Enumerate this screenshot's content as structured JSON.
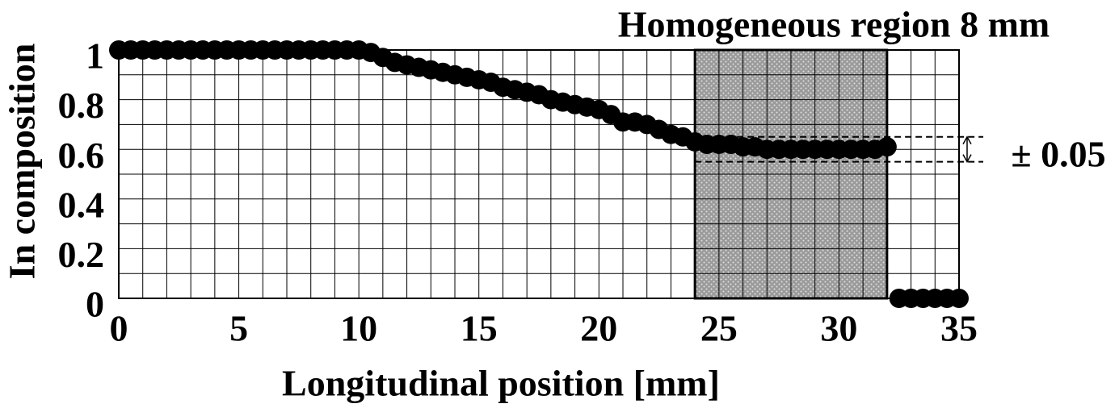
{
  "chart_data": {
    "type": "scatter",
    "x_label": "Longitudinal position [mm]",
    "y_label": "In composition",
    "x": [
      0,
      0.5,
      1,
      1.5,
      2,
      2.5,
      3,
      3.5,
      4,
      4.5,
      5,
      5.5,
      6,
      6.5,
      7,
      7.5,
      8,
      8.5,
      9,
      9.5,
      10,
      10.5,
      11,
      11.5,
      12,
      12.5,
      13,
      13.5,
      14,
      14.5,
      15,
      15.5,
      16,
      16.5,
      17,
      17.5,
      18,
      18.5,
      19,
      19.5,
      20,
      20.5,
      21,
      21.5,
      22,
      22.5,
      23,
      23.5,
      24,
      24.5,
      25,
      25.5,
      26,
      26.5,
      27,
      27.5,
      28,
      28.5,
      29,
      29.5,
      30,
      30.5,
      31,
      31.5,
      32,
      32.5,
      33,
      33.5,
      34,
      34.5,
      35
    ],
    "values": [
      1,
      1,
      1,
      1,
      1,
      1,
      1,
      1,
      1,
      1,
      1,
      1,
      1,
      1,
      1,
      1,
      1,
      1,
      1,
      1,
      1,
      0.99,
      0.97,
      0.95,
      0.94,
      0.93,
      0.92,
      0.91,
      0.9,
      0.89,
      0.88,
      0.87,
      0.85,
      0.84,
      0.83,
      0.82,
      0.8,
      0.79,
      0.78,
      0.77,
      0.76,
      0.74,
      0.71,
      0.71,
      0.7,
      0.68,
      0.66,
      0.65,
      0.63,
      0.62,
      0.62,
      0.62,
      0.61,
      0.61,
      0.6,
      0.6,
      0.6,
      0.6,
      0.6,
      0.6,
      0.6,
      0.6,
      0.6,
      0.6,
      0.61,
      0,
      0,
      0,
      0,
      0,
      0
    ],
    "color": "#000000",
    "xlim": [
      0,
      35
    ],
    "ylim": [
      0,
      1
    ],
    "xticks": [
      0,
      5,
      10,
      15,
      20,
      25,
      30,
      35
    ],
    "yticks": [
      0,
      0.2,
      0.4,
      0.6,
      0.8,
      1
    ],
    "grid": true,
    "grid_xticks": [
      0,
      1,
      2,
      3,
      4,
      5,
      6,
      7,
      8,
      9,
      10,
      11,
      12,
      13,
      14,
      15,
      16,
      17,
      18,
      19,
      20,
      21,
      22,
      23,
      24,
      25,
      26,
      27,
      28,
      29,
      30,
      31,
      32,
      33,
      34,
      35
    ],
    "grid_yticks": [
      0,
      0.1,
      0.2,
      0.3,
      0.4,
      0.5,
      0.6,
      0.7,
      0.8,
      0.9,
      1
    ],
    "region": {
      "x": [
        24,
        32
      ],
      "label": "Homogeneous region 8 mm"
    },
    "band": {
      "lower": 0.55,
      "upper": 0.65,
      "label": "± 0.05"
    }
  }
}
